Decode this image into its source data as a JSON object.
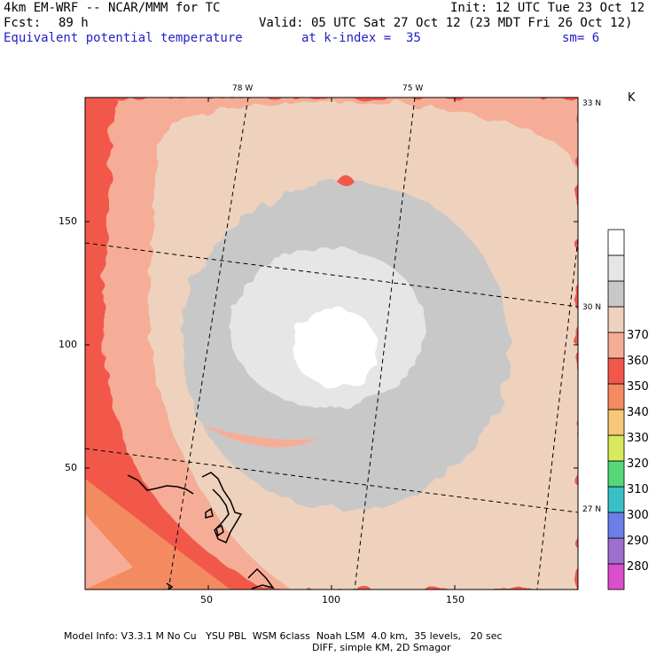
{
  "header": {
    "model": "4km EM-WRF -- NCAR/MMM for TC",
    "init": "Init: 12 UTC Tue 23 Oct 12",
    "fcst_label": "Fcst:",
    "fcst_value": "89 h",
    "valid": "Valid: 05 UTC Sat 27 Oct 12 (23 MDT Fri 26 Oct 12)",
    "field": "Equivalent potential temperature",
    "level": "at k-index =  35",
    "smooth": "sm= 6"
  },
  "map": {
    "x_ticks": [
      "50",
      "100",
      "150"
    ],
    "y_ticks": [
      "50",
      "100",
      "150"
    ],
    "lon_labels": [
      "78 W",
      "75 W"
    ],
    "lat_labels": [
      "33 N",
      "30 N",
      "27 N"
    ]
  },
  "colorbar": {
    "unit": "K",
    "levels": [
      "280",
      "290",
      "300",
      "310",
      "320",
      "330",
      "340",
      "350",
      "360",
      "370"
    ],
    "colors": {
      "275": "#d94fcc",
      "285": "#9e6fcf",
      "295": "#6c7fe6",
      "305": "#39c0c7",
      "315": "#55d87a",
      "325": "#d6ea5c",
      "335": "#f6c776",
      "345": "#f48b60",
      "355": "#f2584a",
      "365": "#f6ad97",
      "375": "#efd2bd",
      "385": "#c9c8c8",
      "395": "#e6e6e6",
      "405": "#ffffff"
    }
  },
  "footer": {
    "line1": "Model Info: V3.3.1 M No Cu   YSU PBL  WSM 6class  Noah LSM  4.0 km,  35 levels,   20 sec",
    "line2": "DIFF, simple KM, 2D Smagor"
  }
}
